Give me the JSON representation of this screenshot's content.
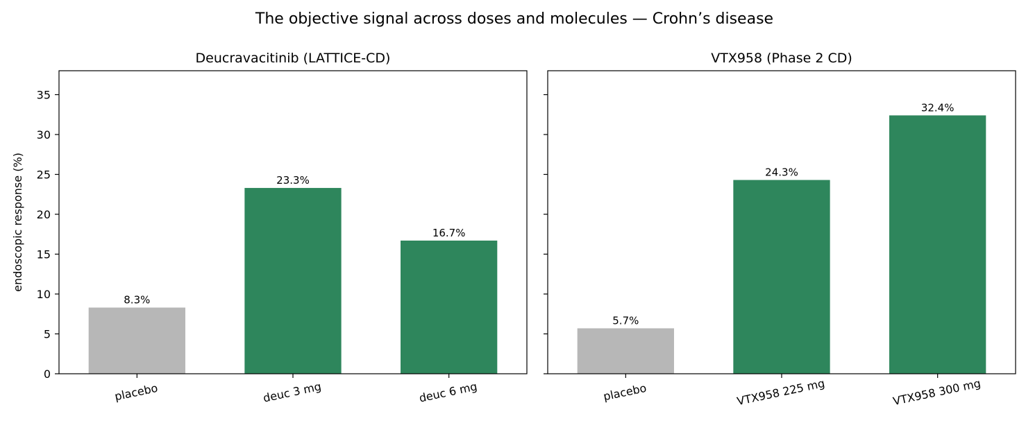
{
  "figure": {
    "title": "The objective signal across doses and molecules — Crohn’s disease"
  },
  "colors": {
    "placebo": "#b7b7b7",
    "active": "#2e865c"
  },
  "chart_data": [
    {
      "type": "bar",
      "title": "Deucravacitinib  (LATTICE-CD)",
      "categories": [
        "placebo",
        "deuc 3 mg",
        "deuc 6 mg"
      ],
      "values": [
        8.3,
        23.3,
        16.7
      ],
      "data_labels": [
        "8.3%",
        "23.3%",
        "16.7%"
      ],
      "bar_colors": [
        "placebo",
        "active",
        "active"
      ],
      "ylabel": "endoscopic response (%)",
      "ylim": [
        0,
        38
      ],
      "yticks": [
        0,
        5,
        10,
        15,
        20,
        25,
        30,
        35
      ],
      "show_ytick_labels": true,
      "grid": false
    },
    {
      "type": "bar",
      "title": "VTX958  (Phase 2 CD)",
      "categories": [
        "placebo",
        "VTX958 225 mg",
        "VTX958 300 mg"
      ],
      "values": [
        5.7,
        24.3,
        32.4
      ],
      "data_labels": [
        "5.7%",
        "24.3%",
        "32.4%"
      ],
      "bar_colors": [
        "placebo",
        "active",
        "active"
      ],
      "ylabel": "",
      "ylim": [
        0,
        38
      ],
      "yticks": [
        0,
        5,
        10,
        15,
        20,
        25,
        30,
        35
      ],
      "show_ytick_labels": false,
      "grid": false
    }
  ]
}
